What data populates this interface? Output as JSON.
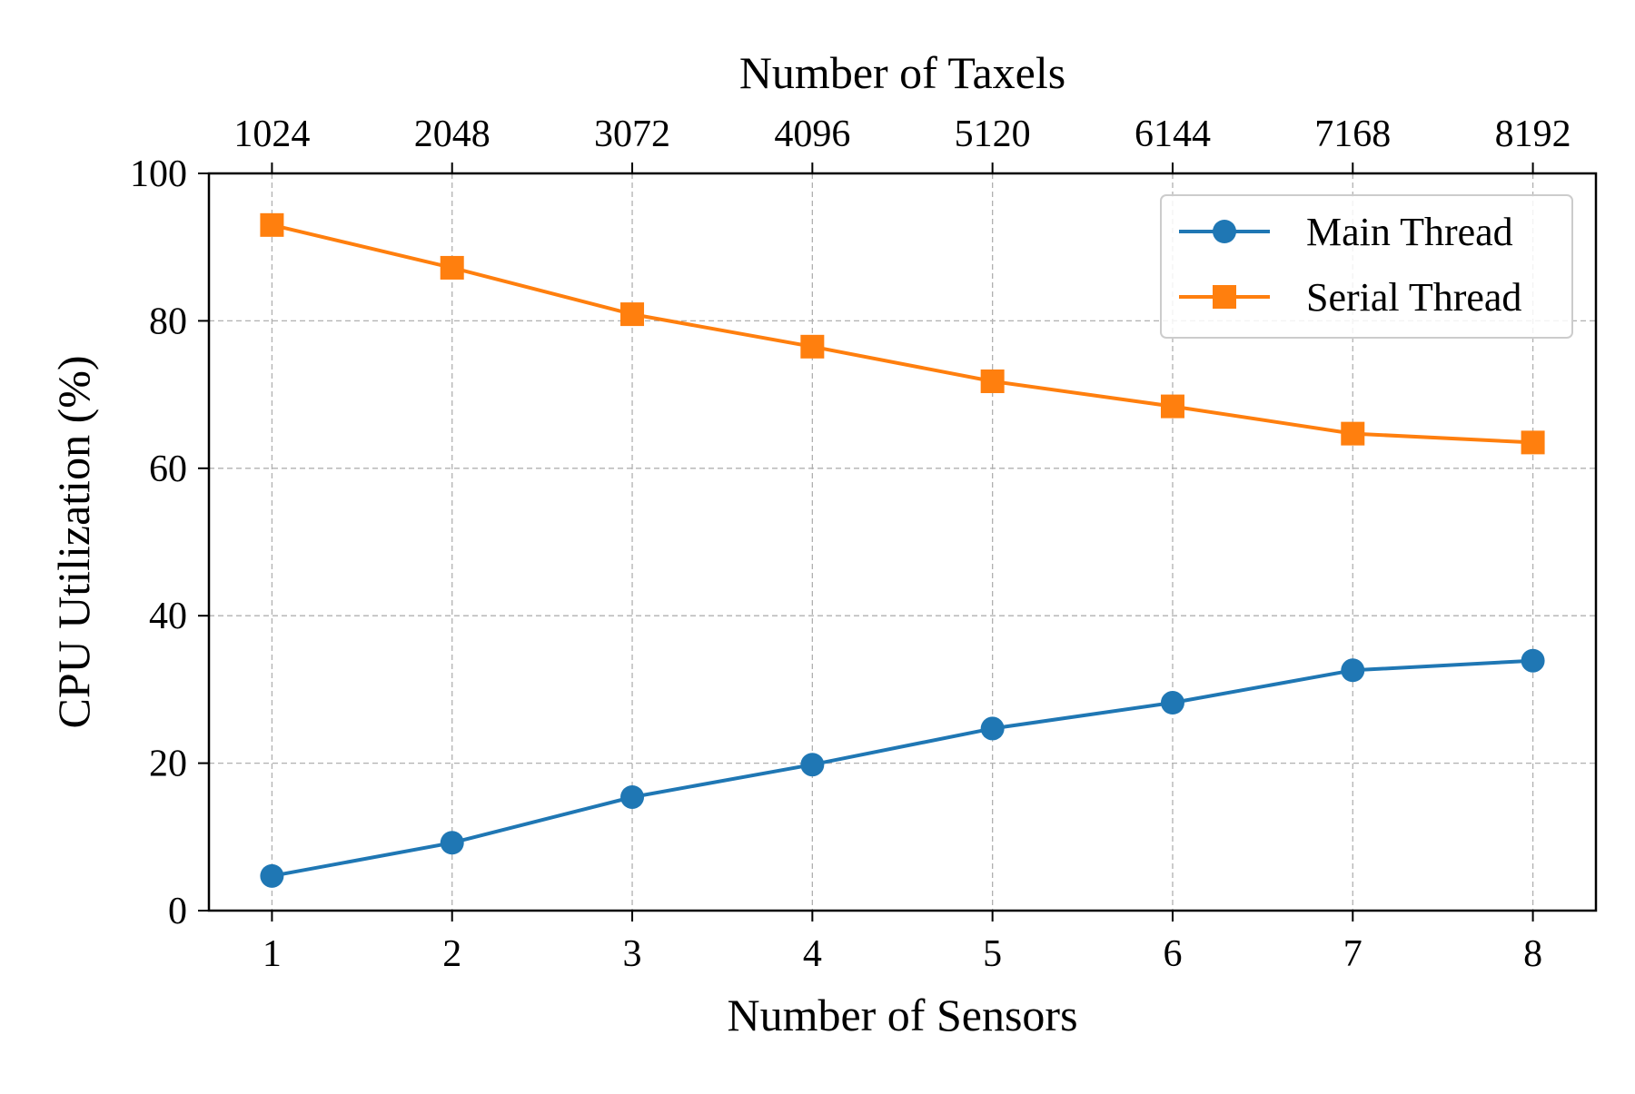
{
  "chart_data": {
    "type": "line",
    "xlabel": "Number of Sensors",
    "ylabel": "CPU Utilization (%)",
    "top_xlabel": "Number of Taxels",
    "x": [
      1,
      2,
      3,
      4,
      5,
      6,
      7,
      8
    ],
    "x_tick_labels": [
      "1",
      "2",
      "3",
      "4",
      "5",
      "6",
      "7",
      "8"
    ],
    "top_x_tick_labels": [
      "1024",
      "2048",
      "3072",
      "4096",
      "5120",
      "6144",
      "7168",
      "8192"
    ],
    "y_ticks": [
      0,
      20,
      40,
      60,
      80,
      100
    ],
    "y_tick_labels": [
      "0",
      "20",
      "40",
      "60",
      "80",
      "100"
    ],
    "xlim": [
      0.65,
      8.35
    ],
    "ylim": [
      0,
      100
    ],
    "grid": true,
    "legend_position": "top-right",
    "series": [
      {
        "name": "Main Thread",
        "color": "#1f77b4",
        "marker": "circle",
        "values": [
          4.7,
          9.2,
          15.4,
          19.8,
          24.7,
          28.2,
          32.6,
          33.9
        ]
      },
      {
        "name": "Serial Thread",
        "color": "#ff7f0e",
        "marker": "square",
        "values": [
          93.0,
          87.2,
          80.9,
          76.5,
          71.8,
          68.4,
          64.7,
          63.5
        ]
      }
    ]
  }
}
